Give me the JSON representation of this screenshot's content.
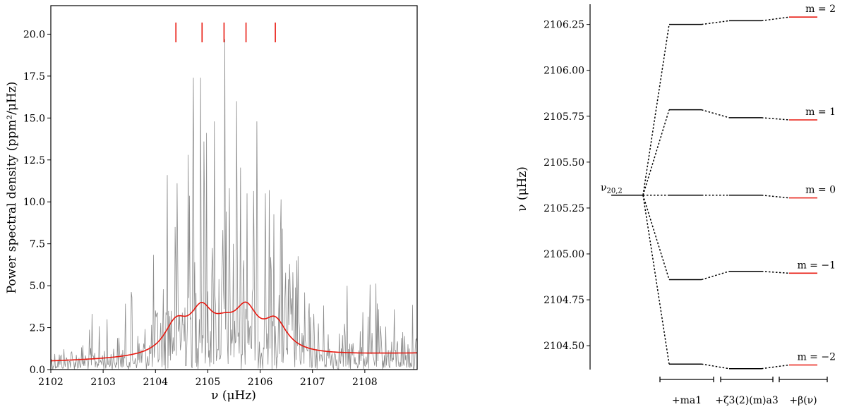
{
  "chart_data": [
    {
      "type": "line",
      "xlabel": "ν (μHz)",
      "ylabel": "Power spectral density (ppm²/μHz)",
      "xlim": [
        2102,
        2109
      ],
      "ylim": [
        0,
        21.7
      ],
      "xticks": [
        2102,
        2103,
        2104,
        2105,
        2106,
        2107,
        2108
      ],
      "yticks": [
        0.0,
        2.5,
        5.0,
        7.5,
        10.0,
        12.5,
        15.0,
        17.5,
        20.0
      ],
      "xtick_labels": [
        "2102",
        "2103",
        "2104",
        "2105",
        "2106",
        "2107",
        "2108"
      ],
      "ytick_labels": [
        "0.0",
        "2.5",
        "5.0",
        "7.5",
        "10.0",
        "12.5",
        "15.0",
        "17.5",
        "20.0"
      ],
      "series": [
        {
          "kind": "spectrum",
          "color": "#8c8c8c",
          "peaks": [
            {
              "x": 2103.55,
              "y": 4.3
            },
            {
              "x": 2104.22,
              "y": 11.6
            },
            {
              "x": 2104.38,
              "y": 8.5
            },
            {
              "x": 2104.62,
              "y": 12.8
            },
            {
              "x": 2104.72,
              "y": 17.4
            },
            {
              "x": 2104.86,
              "y": 17.4
            },
            {
              "x": 2104.92,
              "y": 13.6
            },
            {
              "x": 2105.12,
              "y": 14.8
            },
            {
              "x": 2105.33,
              "y": 19.7
            },
            {
              "x": 2105.55,
              "y": 16.0
            },
            {
              "x": 2105.75,
              "y": 10.5
            },
            {
              "x": 2105.94,
              "y": 14.8
            },
            {
              "x": 2106.1,
              "y": 10.5
            },
            {
              "x": 2106.43,
              "y": 8.4
            },
            {
              "x": 2106.56,
              "y": 6.3
            },
            {
              "x": 2106.7,
              "y": 6.5
            },
            {
              "x": 2106.85,
              "y": 4.6
            },
            {
              "x": 2106.63,
              "y": 5.8
            }
          ]
        },
        {
          "kind": "fit",
          "color": "#e8180f",
          "background": 0.45,
          "background_slope": 0.07,
          "modes": [
            {
              "x": 2104.39,
              "height": 1.75,
              "width": 0.55
            },
            {
              "x": 2104.88,
              "height": 2.35,
              "width": 0.55
            },
            {
              "x": 2105.32,
              "height": 1.05,
              "width": 0.55
            },
            {
              "x": 2105.73,
              "height": 2.35,
              "width": 0.55
            },
            {
              "x": 2106.29,
              "height": 1.75,
              "width": 0.55
            }
          ]
        }
      ],
      "mode_markers": {
        "color": "#e8180f",
        "x": [
          2104.39,
          2104.89,
          2105.31,
          2105.73,
          2106.29
        ]
      }
    },
    {
      "type": "diagram",
      "ylabel": "ν (μHz)",
      "ylim": [
        2104.37,
        2106.36
      ],
      "yticks": [
        2104.5,
        2104.75,
        2105.0,
        2105.25,
        2105.5,
        2105.75,
        2106.0,
        2106.25
      ],
      "ytick_labels": [
        "2104.50",
        "2104.75",
        "2105.00",
        "2105.25",
        "2105.50",
        "2105.75",
        "2106.00",
        "2106.25"
      ],
      "central_level": {
        "value": 2105.32,
        "label": "ν20,2"
      },
      "levels": [
        {
          "m_label": "m = 2",
          "ma1": 2106.25,
          "zeta": 2106.27,
          "beta": 2106.29
        },
        {
          "m_label": "m = 1",
          "ma1": 2105.785,
          "zeta": 2105.742,
          "beta": 2105.73
        },
        {
          "m_label": "m = 0",
          "ma1": 2105.32,
          "zeta": 2105.32,
          "beta": 2105.305
        },
        {
          "m_label": "m = −1",
          "ma1": 2104.86,
          "zeta": 2104.905,
          "beta": 2104.895
        },
        {
          "m_label": "m = −2",
          "ma1": 2104.4,
          "zeta": 2104.375,
          "beta": 2104.395
        }
      ],
      "stage_labels": [
        "+ma1",
        "+ζ3(2)(m)a3",
        "+β(ν)"
      ],
      "beta_color": "#e8180f"
    }
  ]
}
